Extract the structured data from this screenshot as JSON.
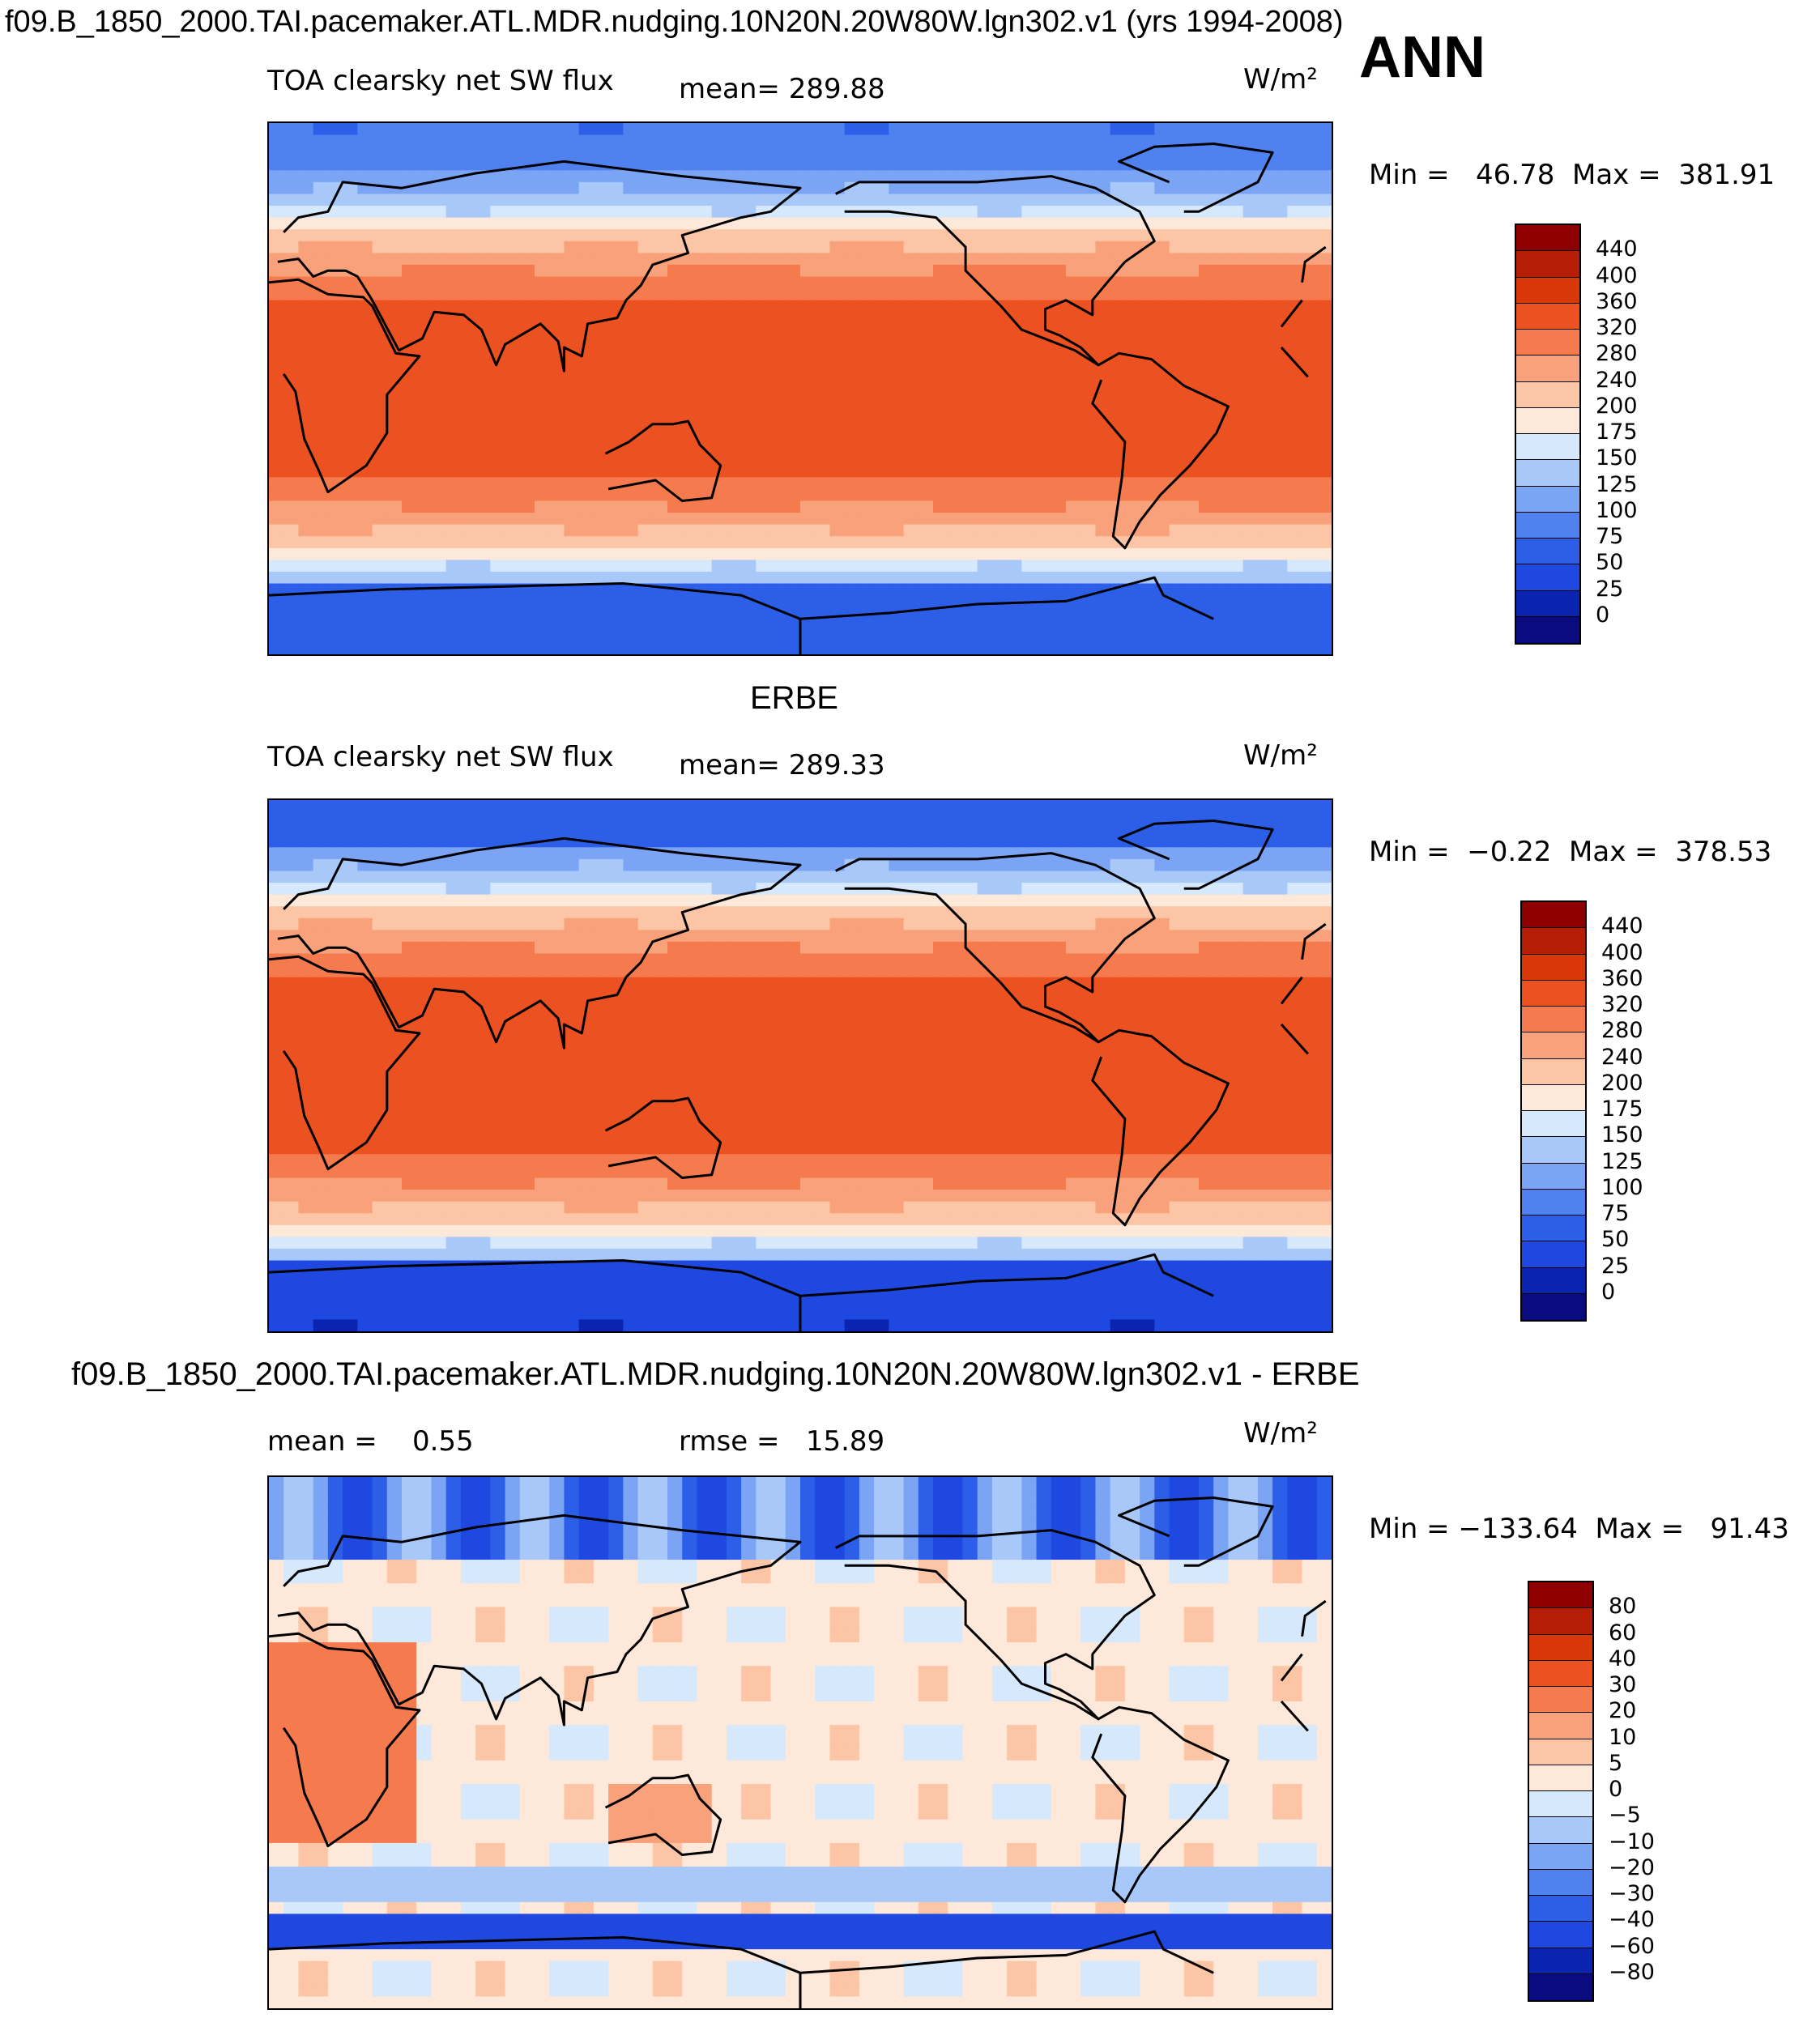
{
  "header": {
    "run_title": "f09.B_1850_2000.TAI.pacemaker.ATL.MDR.nudging.10N20N.20W80W.lgn302.v1 (yrs 1994-2008)",
    "season": "ANN"
  },
  "panels": [
    {
      "title": "",
      "variable": "TOA clearsky net SW flux",
      "mean_text": "mean= 289.88",
      "units": "W/m²",
      "minmax_text": "Min =   46.78  Max =  381.91",
      "scale": "abs",
      "labels": [
        "440",
        "400",
        "360",
        "320",
        "280",
        "240",
        "200",
        "175",
        "150",
        "125",
        "100",
        "75",
        "50",
        "25",
        "0"
      ]
    },
    {
      "title": "ERBE",
      "variable": "TOA clearsky net SW flux",
      "mean_text": "mean= 289.33",
      "units": "W/m²",
      "minmax_text": "Min =  −0.22  Max =  378.53",
      "scale": "abs",
      "labels": [
        "440",
        "400",
        "360",
        "320",
        "280",
        "240",
        "200",
        "175",
        "150",
        "125",
        "100",
        "75",
        "50",
        "25",
        "0"
      ]
    },
    {
      "title": "f09.B_1850_2000.TAI.pacemaker.ATL.MDR.nudging.10N20N.20W80W.lgn302.v1 - ERBE",
      "variable": "",
      "mean_text": "mean =    0.55",
      "rmse_text": "rmse =   15.89",
      "units": "W/m²",
      "minmax_text": "Min = −133.64  Max =   91.43",
      "scale": "diff",
      "labels": [
        "80",
        "60",
        "40",
        "30",
        "20",
        "10",
        "5",
        "0",
        "−5",
        "−10",
        "−20",
        "−30",
        "−40",
        "−60",
        "−80"
      ]
    }
  ],
  "chart_data": [
    {
      "type": "heatmap",
      "title": "f09.B_1850_2000.TAI.pacemaker.ATL.MDR.nudging.10N20N.20W80W.lgn302.v1 (yrs 1994-2008) ANN",
      "variable": "TOA clearsky net SW flux",
      "units": "W/m²",
      "mean": 289.88,
      "min": 46.78,
      "max": 381.91,
      "contour_levels": [
        0,
        25,
        50,
        75,
        100,
        125,
        150,
        175,
        200,
        240,
        280,
        320,
        360,
        400,
        440
      ],
      "colors": [
        "#0b0b80",
        "#0a24b0",
        "#1e48e0",
        "#2c5ee8",
        "#4f82f0",
        "#7ba4f5",
        "#a9c8fa",
        "#d6e8fb",
        "#fde8d9",
        "#fcc5a6",
        "#f9a17a",
        "#f57a4e",
        "#ec5121",
        "#d83808",
        "#b51d05",
        "#8e0000"
      ],
      "region": "global, lon 0 to 360 centered on 180"
    },
    {
      "type": "heatmap",
      "title": "ERBE",
      "variable": "TOA clearsky net SW flux",
      "units": "W/m²",
      "mean": 289.33,
      "min": -0.22,
      "max": 378.53,
      "contour_levels": [
        0,
        25,
        50,
        75,
        100,
        125,
        150,
        175,
        200,
        240,
        280,
        320,
        360,
        400,
        440
      ],
      "colors": [
        "#0b0b80",
        "#0a24b0",
        "#1e48e0",
        "#2c5ee8",
        "#4f82f0",
        "#7ba4f5",
        "#a9c8fa",
        "#d6e8fb",
        "#fde8d9",
        "#fcc5a6",
        "#f9a17a",
        "#f57a4e",
        "#ec5121",
        "#d83808",
        "#b51d05",
        "#8e0000"
      ],
      "region": "global"
    },
    {
      "type": "heatmap",
      "title": "f09.B_1850_2000.TAI.pacemaker.ATL.MDR.nudging.10N20N.20W80W.lgn302.v1 - ERBE",
      "units": "W/m²",
      "mean": 0.55,
      "rmse": 15.89,
      "min": -133.64,
      "max": 91.43,
      "contour_levels": [
        -80,
        -60,
        -40,
        -30,
        -20,
        -10,
        -5,
        0,
        5,
        10,
        20,
        30,
        40,
        60,
        80
      ],
      "colors": [
        "#0b0b80",
        "#0a24b0",
        "#1e48e0",
        "#2c5ee8",
        "#4f82f0",
        "#7ba4f5",
        "#a9c8fa",
        "#d6e8fb",
        "#fde8d9",
        "#fcc5a6",
        "#f9a17a",
        "#f57a4e",
        "#ec5121",
        "#d83808",
        "#b51d05",
        "#8e0000"
      ],
      "region": "global"
    }
  ]
}
